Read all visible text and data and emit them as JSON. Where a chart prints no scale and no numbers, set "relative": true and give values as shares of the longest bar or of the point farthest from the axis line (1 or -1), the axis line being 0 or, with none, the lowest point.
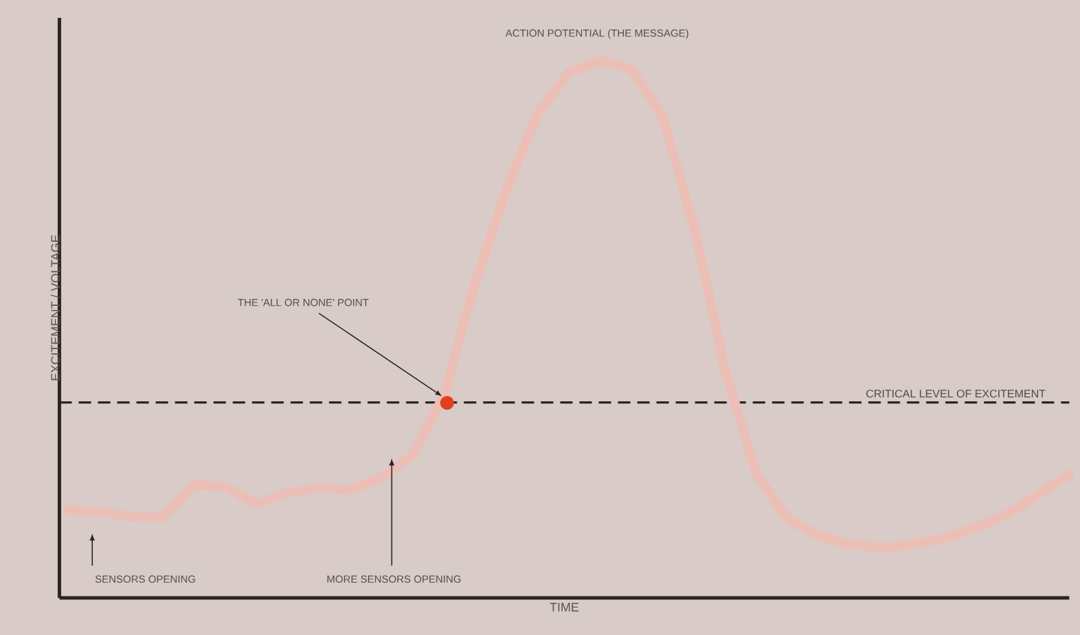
{
  "chart_data": {
    "type": "line",
    "relative": true,
    "xlabel": "TIME",
    "ylabel": "EXCITEMENT / VOLTAGE",
    "categories": [
      null,
      null,
      null,
      null,
      null,
      null,
      null,
      null,
      null,
      null,
      null,
      null,
      null,
      null,
      null,
      null,
      null,
      null,
      null,
      null,
      null,
      null,
      null,
      null,
      null,
      null,
      null,
      null,
      null,
      null,
      null,
      null,
      null
    ],
    "series": [
      {
        "color": "#ecbfb6",
        "values": [
          0.164,
          0.16,
          0.151,
          0.15,
          0.211,
          0.207,
          0.175,
          0.196,
          0.205,
          0.201,
          0.224,
          0.266,
          0.377,
          0.588,
          0.761,
          0.902,
          0.978,
          1.0,
          0.985,
          0.895,
          0.691,
          0.422,
          0.23,
          0.147,
          0.115,
          0.1,
          0.093,
          0.1,
          0.111,
          0.13,
          0.156,
          0.192,
          0.23
        ]
      }
    ],
    "ref_lines": [
      {
        "axis": "y",
        "value": 0.364,
        "label": "CRITICAL LEVEL OF EXCITEMENT",
        "line_style": "dashed",
        "color": "#2a2422"
      }
    ],
    "annotations": [
      "ACTION POTENTIAL (THE MESSAGE)",
      "THE 'ALL OR NONE' POINT",
      "SENSORS OPENING",
      "MORE SENSORS OPENING"
    ]
  }
}
